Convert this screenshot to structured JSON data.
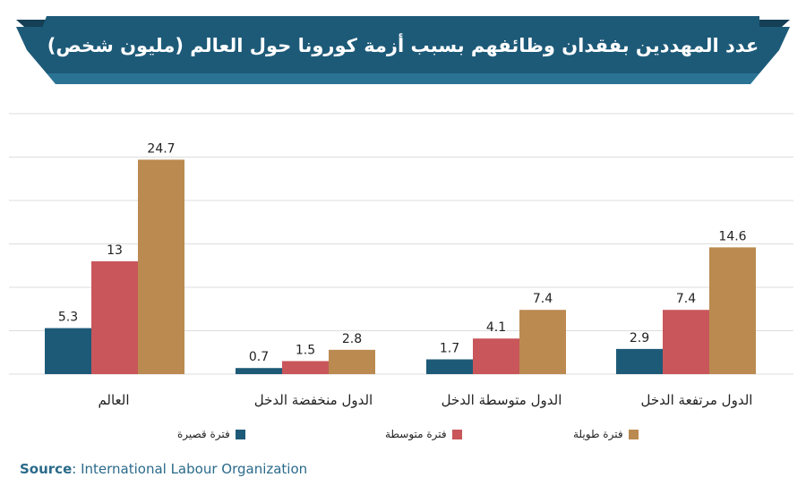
{
  "title": "عدد المهددين بفقدان وظائفهم بسبب أزمة كورونا حول العالم (مليون شخص)",
  "colors": {
    "banner": "#1d5a78",
    "banner_dark": "#153f55",
    "short": "#1d5a78",
    "medium": "#c8565a",
    "long": "#bb8a50",
    "grid": "#dddddd"
  },
  "chart_data": {
    "type": "bar",
    "title": "عدد المهددين بفقدان وظائفهم بسبب أزمة كورونا حول العالم (مليون شخص)",
    "categories": [
      "العالم",
      "الدول منخفضة الدخل",
      "الدول متوسطة الدخل",
      "الدول مرتفعة الدخل"
    ],
    "series": [
      {
        "name": "فترة قصيرة",
        "values": [
          5.3,
          0.7,
          1.7,
          2.9
        ]
      },
      {
        "name": "فترة متوسطة",
        "values": [
          13,
          1.5,
          4.1,
          7.4
        ]
      },
      {
        "name": "فترة طويلة",
        "values": [
          24.7,
          2.8,
          7.4,
          14.6
        ]
      }
    ],
    "value_labels": [
      [
        "5.3",
        "0.7",
        "1.7",
        "2.9"
      ],
      [
        "13",
        "1.5",
        "4.1",
        "7.4"
      ],
      [
        "24.7",
        "2.8",
        "7.4",
        "14.6"
      ]
    ],
    "ylim": [
      0,
      30
    ],
    "grid": true,
    "legend": "bottom"
  },
  "source": {
    "label": "Source",
    "text": ": International Labour Organization"
  }
}
